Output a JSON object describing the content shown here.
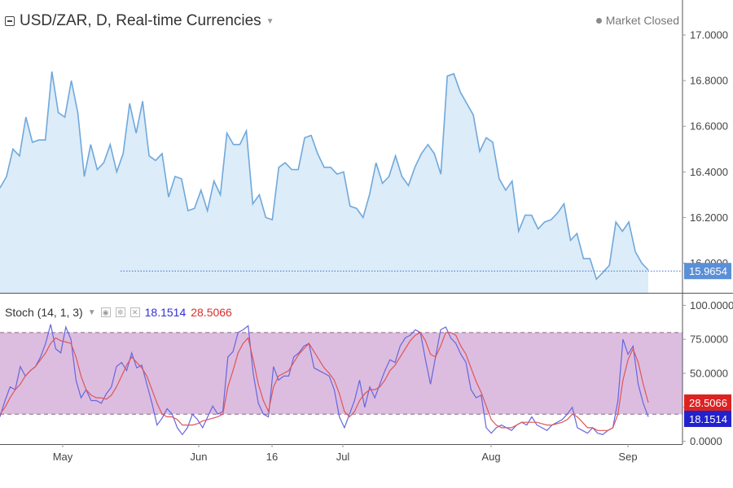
{
  "header": {
    "title": "USD/ZAR, D, Real-time Currencies",
    "market_status": "Market Closed"
  },
  "indicator": {
    "label": "Stoch (14, 1, 3)",
    "k_value": "18.1514",
    "d_value": "28.5066",
    "k_color": "#2f2fd6",
    "d_color": "#d62f2f",
    "icons": [
      "eye-icon",
      "gear-icon",
      "close-icon"
    ]
  },
  "colors": {
    "price_line": "#6fa8dc",
    "price_fill": "#dcecf8",
    "last_price_tag": "#5b8fd8",
    "band_fill": "#dcbde0",
    "k_tag": "#2222cc",
    "d_tag": "#dd2222"
  },
  "chart_data": [
    {
      "type": "area",
      "ylim": [
        15.87,
        17.1
      ],
      "yticks": [
        "17.0000",
        "16.8000",
        "16.6000",
        "16.4000",
        "16.2000",
        "16.0000"
      ],
      "last_price_label": "15.9654",
      "last_price": 15.9654,
      "x_labels": [
        "May",
        "Jun",
        "16",
        "Jul",
        "Aug",
        "Sep"
      ],
      "series": [
        {
          "values": [
            16.33,
            16.38,
            16.5,
            16.47,
            16.64,
            16.53,
            16.54,
            16.54,
            16.84,
            16.66,
            16.64,
            16.8,
            16.66,
            16.38,
            16.52,
            16.41,
            16.44,
            16.52,
            16.4,
            16.48,
            16.7,
            16.57,
            16.71,
            16.47,
            16.45,
            16.48,
            16.29,
            16.38,
            16.37,
            16.23,
            16.24,
            16.32,
            16.23,
            16.36,
            16.3,
            16.57,
            16.52,
            16.52,
            16.58,
            16.26,
            16.3,
            16.2,
            16.19,
            16.42,
            16.44,
            16.41,
            16.41,
            16.55,
            16.56,
            16.48,
            16.42,
            16.42,
            16.39,
            16.4,
            16.25,
            16.24,
            16.2,
            16.3,
            16.44,
            16.35,
            16.38,
            16.47,
            16.38,
            16.34,
            16.42,
            16.48,
            16.52,
            16.48,
            16.39,
            16.82,
            16.83,
            16.75,
            16.7,
            16.65,
            16.49,
            16.55,
            16.53,
            16.37,
            16.32,
            16.36,
            16.14,
            16.21,
            16.21,
            16.15,
            16.18,
            16.19,
            16.22,
            16.26,
            16.1,
            16.13,
            16.02,
            16.02,
            15.93,
            15.96,
            15.99,
            16.18,
            16.14,
            16.18,
            16.05,
            16.0,
            15.97
          ]
        }
      ]
    },
    {
      "type": "line",
      "ylim": [
        -2,
        108
      ],
      "yticks": [
        "100.0000",
        "75.0000",
        "50.0000",
        "25.0000",
        "0.0000"
      ],
      "bands": [
        20,
        80
      ],
      "x_labels": [
        "May",
        "Jun",
        "16",
        "Jul",
        "Aug",
        "Sep"
      ],
      "series": [
        {
          "name": "%K",
          "values": [
            18,
            30,
            40,
            38,
            55,
            48,
            52,
            55,
            62,
            72,
            86,
            68,
            65,
            84,
            75,
            45,
            32,
            38,
            30,
            30,
            28,
            35,
            40,
            55,
            58,
            52,
            65,
            54,
            56,
            42,
            28,
            12,
            17,
            24,
            20,
            10,
            5,
            10,
            20,
            16,
            10,
            18,
            26,
            20,
            22,
            62,
            66,
            80,
            82,
            85,
            50,
            28,
            20,
            18,
            55,
            45,
            48,
            48,
            62,
            65,
            70,
            72,
            54,
            52,
            50,
            48,
            38,
            18,
            10,
            20,
            30,
            45,
            25,
            40,
            32,
            42,
            52,
            60,
            58,
            70,
            76,
            78,
            82,
            80,
            60,
            42,
            62,
            82,
            84,
            76,
            72,
            64,
            58,
            38,
            32,
            34,
            10,
            6,
            10,
            12,
            10,
            8,
            12,
            14,
            12,
            18,
            12,
            10,
            8,
            12,
            14,
            16,
            20,
            25,
            10,
            8,
            6,
            10,
            6,
            5,
            8,
            10,
            30,
            75,
            64,
            70,
            42,
            28,
            18
          ]
        },
        {
          "name": "%D",
          "values": [
            20,
            25,
            32,
            38,
            42,
            48,
            52,
            55,
            60,
            65,
            72,
            76,
            74,
            73,
            72,
            62,
            48,
            38,
            34,
            32,
            32,
            31,
            34,
            40,
            48,
            56,
            62,
            58,
            54,
            48,
            38,
            28,
            20,
            18,
            18,
            16,
            12,
            12,
            12,
            13,
            15,
            16,
            17,
            18,
            20,
            40,
            52,
            65,
            72,
            76,
            60,
            42,
            30,
            22,
            40,
            48,
            50,
            52,
            58,
            64,
            68,
            72,
            66,
            60,
            54,
            50,
            45,
            35,
            22,
            18,
            22,
            30,
            35,
            38,
            38,
            40,
            45,
            52,
            56,
            62,
            68,
            74,
            78,
            80,
            74,
            64,
            62,
            70,
            80,
            80,
            78,
            70,
            64,
            54,
            44,
            36,
            26,
            16,
            12,
            10,
            10,
            10,
            12,
            14,
            14,
            14,
            14,
            13,
            12,
            12,
            13,
            14,
            16,
            20,
            18,
            14,
            10,
            10,
            8,
            8,
            8,
            10,
            20,
            45,
            60,
            68,
            58,
            42,
            28.5
          ]
        }
      ]
    }
  ]
}
